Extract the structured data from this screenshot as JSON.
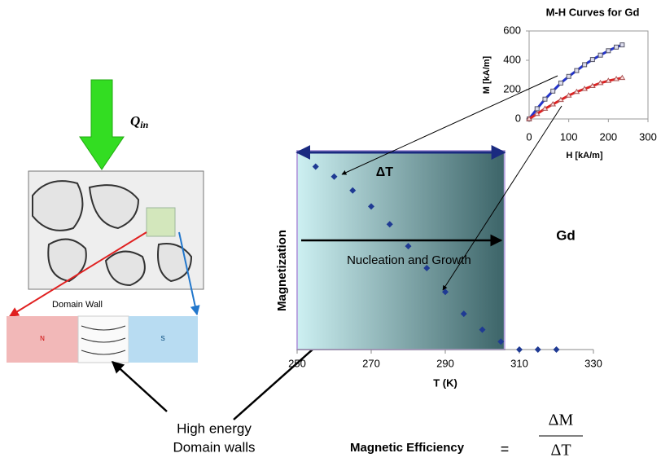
{
  "chart_data": [
    {
      "type": "scatter",
      "xlabel": "T (K)",
      "ylabel": "Magnetization",
      "x": [
        255,
        260,
        265,
        270,
        275,
        280,
        285,
        290,
        295,
        300,
        305,
        310,
        315,
        320
      ],
      "values": [
        0.92,
        0.87,
        0.8,
        0.72,
        0.63,
        0.52,
        0.41,
        0.29,
        0.18,
        0.1,
        0.04,
        0,
        0,
        0
      ],
      "color": "#1f3a93",
      "xlim": [
        250,
        330
      ],
      "xticks": [
        250,
        270,
        290,
        310,
        330
      ],
      "ylim": [
        0,
        1
      ],
      "band": [
        250,
        306
      ],
      "band_label": "ΔT",
      "arrow_label": "Nucleation and Growth",
      "annotation": "Gd"
    },
    {
      "type": "line",
      "title": "M-H Curves for Gd",
      "xlabel": "H [kA/m]",
      "ylabel": "M [kA/m]",
      "x": [
        0,
        20,
        40,
        60,
        80,
        100,
        120,
        140,
        160,
        180,
        200,
        220,
        235
      ],
      "series": [
        {
          "color": "#2233cc",
          "values": [
            0,
            70,
            135,
            190,
            245,
            290,
            330,
            370,
            405,
            435,
            465,
            490,
            505
          ]
        },
        {
          "color": "#dd2222",
          "values": [
            0,
            35,
            70,
            100,
            130,
            160,
            185,
            205,
            225,
            245,
            260,
            272,
            280
          ]
        }
      ],
      "xlim": [
        0,
        300
      ],
      "xticks": [
        0,
        100,
        200,
        300
      ],
      "ylim": [
        0,
        600
      ],
      "yticks": [
        0,
        200,
        400,
        600
      ]
    }
  ],
  "diagram": {
    "heat_label": "Q",
    "heat_sub": "in",
    "domain_wall": "Domain Wall",
    "north": "N",
    "south": "S",
    "callout": [
      "High energy",
      "Domain walls"
    ],
    "efficiency_label": "Magnetic Efficiency",
    "efficiency_num": "ΔM",
    "efficiency_den": "ΔT"
  }
}
